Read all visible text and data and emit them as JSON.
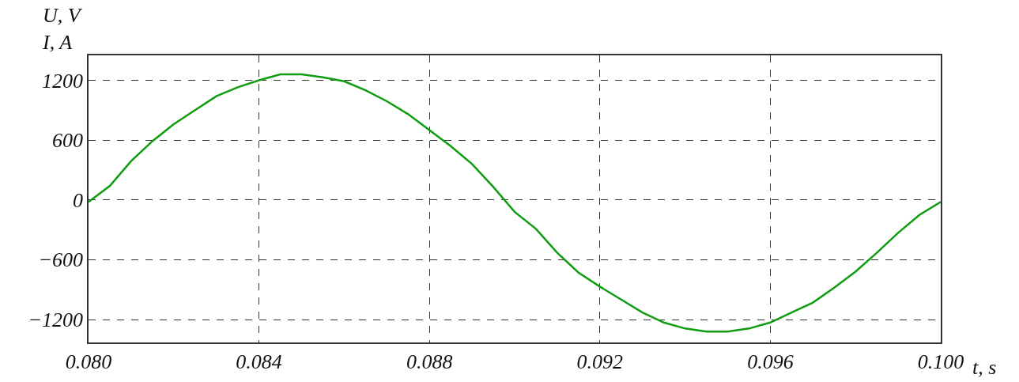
{
  "chart_data": {
    "type": "line",
    "xlabel": "t, s",
    "ylabel": "U, V\nI, A",
    "x": [
      0.08,
      0.0805,
      0.081,
      0.0815,
      0.082,
      0.0825,
      0.083,
      0.0835,
      0.084,
      0.0845,
      0.085,
      0.0855,
      0.086,
      0.0865,
      0.087,
      0.0875,
      0.088,
      0.0885,
      0.089,
      0.0895,
      0.09,
      0.0905,
      0.091,
      0.0915,
      0.092,
      0.0925,
      0.093,
      0.0935,
      0.094,
      0.0945,
      0.095,
      0.0955,
      0.096,
      0.0965,
      0.097,
      0.0975,
      0.098,
      0.0985,
      0.099,
      0.0995,
      0.1
    ],
    "series": [
      {
        "color": "#109c10",
        "values": [
          -20,
          140,
          390,
          590,
          760,
          900,
          1040,
          1130,
          1200,
          1260,
          1260,
          1230,
          1190,
          1100,
          990,
          860,
          700,
          540,
          360,
          130,
          -120,
          -290,
          -530,
          -730,
          -870,
          -1000,
          -1130,
          -1230,
          -1290,
          -1320,
          -1320,
          -1290,
          -1230,
          -1130,
          -1030,
          -880,
          -720,
          -530,
          -330,
          -150,
          -20
        ]
      }
    ],
    "xlim": [
      0.08,
      0.1
    ],
    "xticks": [
      {
        "value": 0.08,
        "label": "0.080"
      },
      {
        "value": 0.084,
        "label": "0.084"
      },
      {
        "value": 0.088,
        "label": "0.088"
      },
      {
        "value": 0.092,
        "label": "0.092"
      },
      {
        "value": 0.096,
        "label": "0.096"
      },
      {
        "value": 0.1,
        "label": "0.100"
      }
    ],
    "ylim": [
      -1430,
      1450
    ],
    "yticks": [
      1200,
      600,
      0,
      {
        "value": -600,
        "label": "−600"
      },
      {
        "value": -1200,
        "label": "−1200"
      }
    ],
    "grid": true,
    "line_style": "solid",
    "marker": "none"
  }
}
